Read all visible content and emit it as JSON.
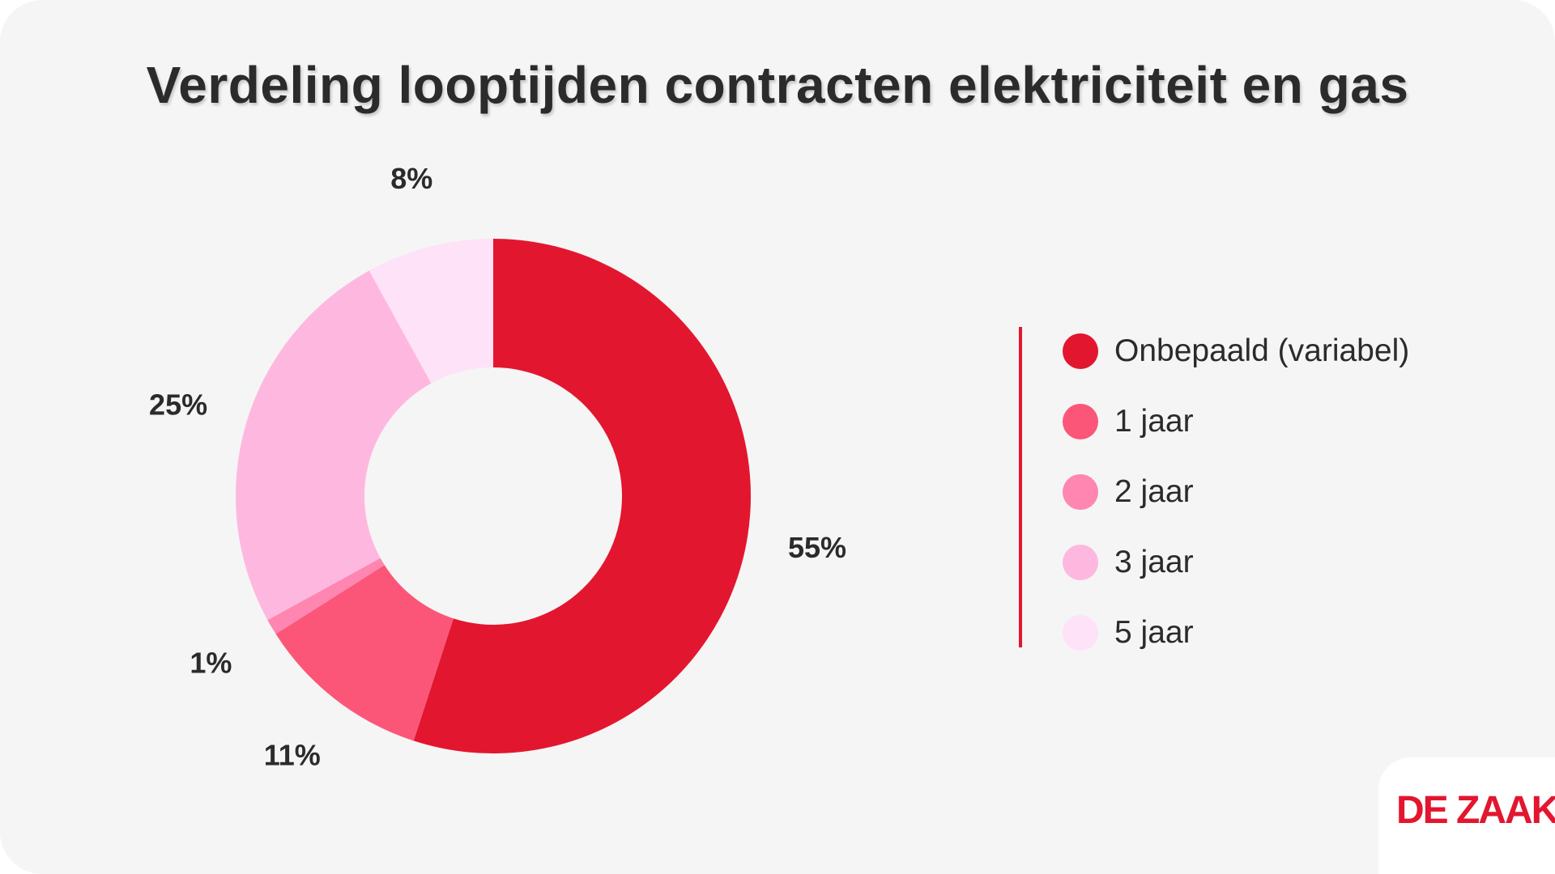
{
  "chart_data": {
    "type": "pie",
    "title": "Verdeling looptijden contracten elektriciteit en gas",
    "categories": [
      "Onbepaald (variabel)",
      "1 jaar",
      "2 jaar",
      "3 jaar",
      "5 jaar"
    ],
    "values": [
      55,
      11,
      1,
      25,
      8
    ],
    "value_labels": [
      "55%",
      "11%",
      "1%",
      "25%",
      "8%"
    ],
    "colors": [
      "#e3162f",
      "#fb5678",
      "#fe86b1",
      "#feb8df",
      "#fee2f7"
    ],
    "donut": true,
    "legend_position": "right"
  },
  "logo": {
    "text": "DE ZAAK"
  }
}
